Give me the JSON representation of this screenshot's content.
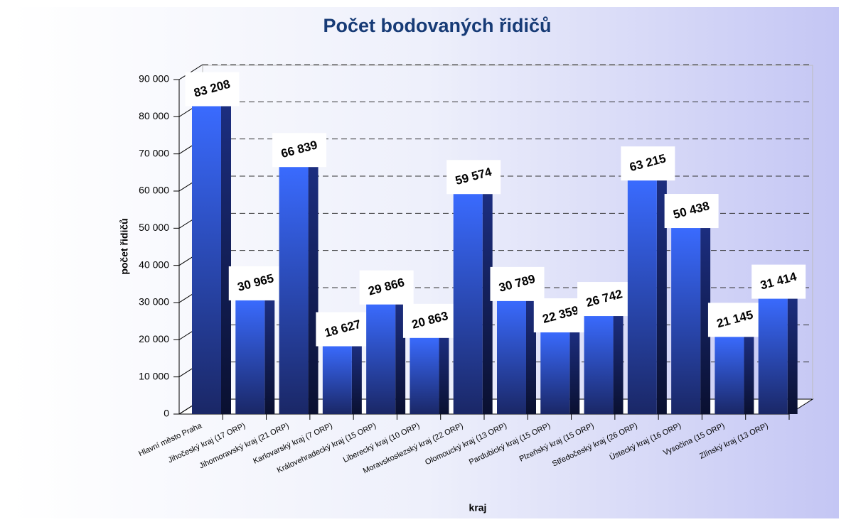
{
  "chart_data": {
    "type": "bar3d",
    "title": "Počet bodovaných řidičů",
    "y_label": "počet řidičů",
    "x_label": "kraj",
    "categories": [
      "Hlavní město Praha",
      "Jihočeský kraj (17 ORP)",
      "Jihomoravský kraj (21 ORP)",
      "Karlovarský kraj (7 ORP)",
      "Královehradecký kraj (15 ORP)",
      "Liberecký kraj (10 ORP)",
      "Moravskoslezský kraj (22 ORP)",
      "Olomoucký kraj (13 ORP)",
      "Pardubický kraj (15 ORP)",
      "Plzeňský kraj (15 ORP)",
      "Středočeský kraj (26 ORP)",
      "Ústecký kraj (16 ORP)",
      "Vysočina (15 ORP)",
      "Zlínský kraj (13 ORP)"
    ],
    "values": [
      83208,
      30965,
      66839,
      18627,
      29866,
      20863,
      59574,
      30789,
      22359,
      26742,
      63215,
      50438,
      21145,
      31414
    ],
    "value_labels": [
      "83 208",
      "30 965",
      "66 839",
      "18 627",
      "29 866",
      "20 863",
      "59 574",
      "30 789",
      "22 359",
      "26 742",
      "63 215",
      "50 438",
      "21 145",
      "31 414"
    ],
    "color": "#3366ff",
    "ylim": [
      0,
      90000
    ],
    "yticks": [
      {
        "value": 0,
        "label": "0"
      },
      {
        "value": 10000,
        "label": "10 000"
      },
      {
        "value": 20000,
        "label": "20 000"
      },
      {
        "value": 30000,
        "label": "30 000"
      },
      {
        "value": 40000,
        "label": "40 000"
      },
      {
        "value": 50000,
        "label": "50 000"
      },
      {
        "value": 60000,
        "label": "60 000"
      },
      {
        "value": 70000,
        "label": "70 000"
      },
      {
        "value": 80000,
        "label": "80 000"
      },
      {
        "value": 90000,
        "label": "90 000"
      }
    ],
    "grid": true
  }
}
